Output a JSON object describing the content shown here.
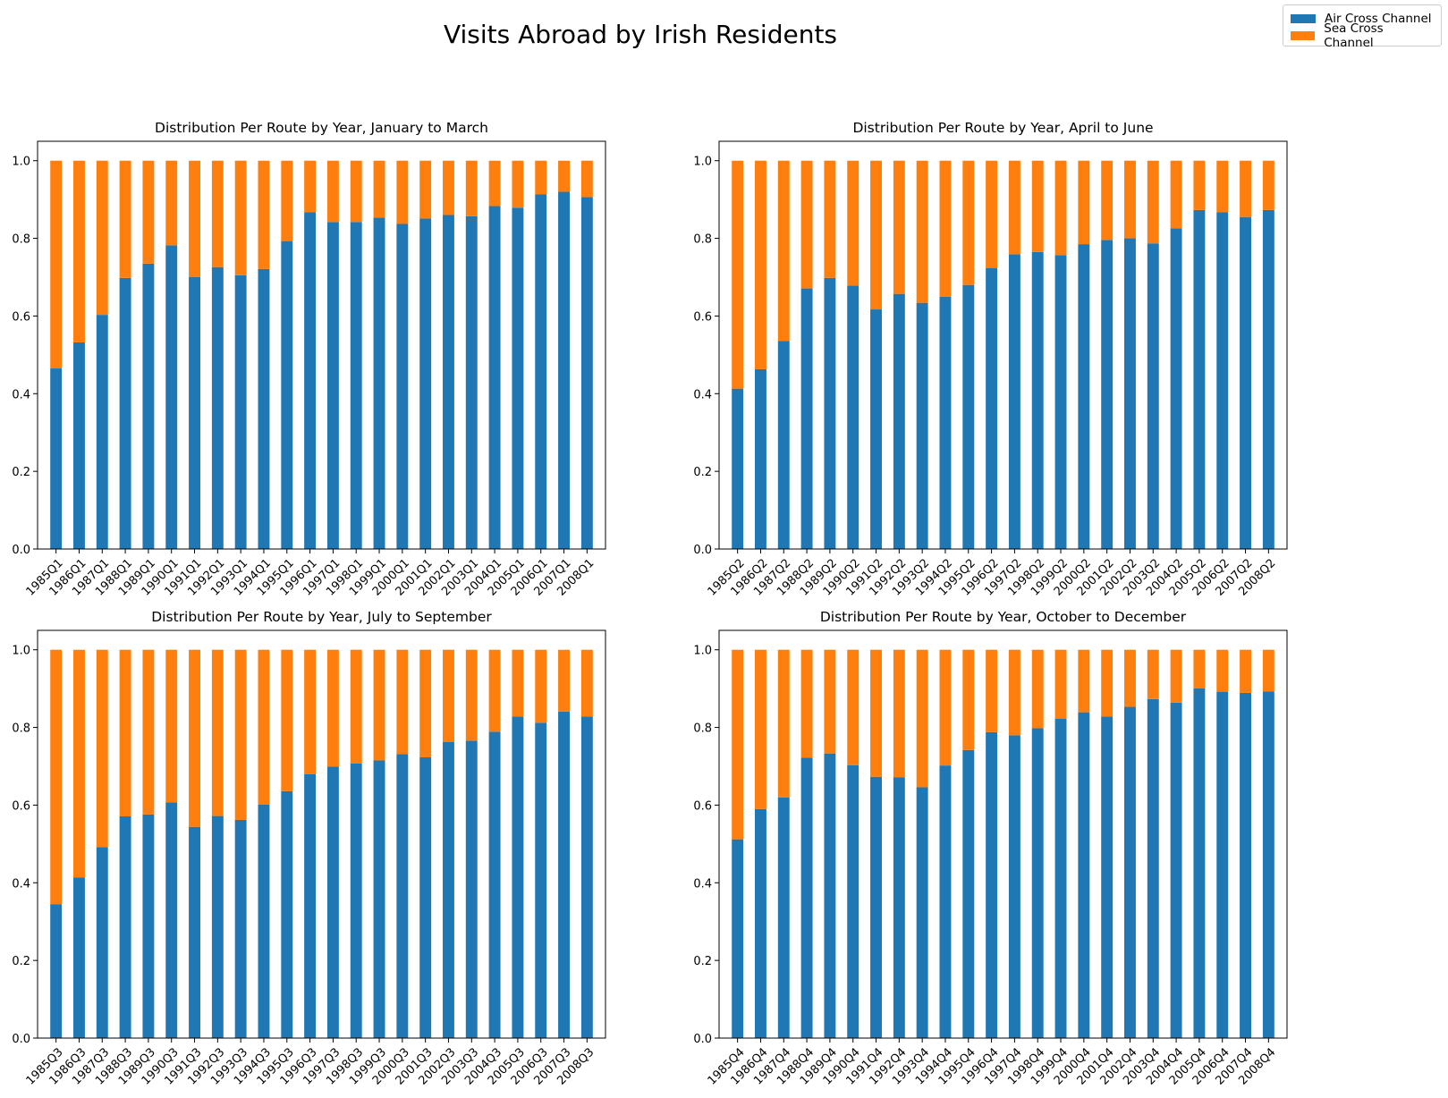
{
  "title": "Visits Abroad by Irish Residents",
  "legend": {
    "items": [
      {
        "label": "Air Cross Channel",
        "color": "#1f77b4"
      },
      {
        "label": "Sea Cross Channel",
        "color": "#ff7f0e"
      }
    ]
  },
  "chart_data": [
    {
      "type": "bar",
      "stacked": true,
      "title": "Distribution Per Route by Year, January to March",
      "categories": [
        "1985Q1",
        "1986Q1",
        "1987Q1",
        "1988Q1",
        "1989Q1",
        "1990Q1",
        "1991Q1",
        "1992Q1",
        "1993Q1",
        "1994Q1",
        "1995Q1",
        "1996Q1",
        "1997Q1",
        "1998Q1",
        "1999Q1",
        "2000Q1",
        "2001Q1",
        "2002Q1",
        "2003Q1",
        "2004Q1",
        "2005Q1",
        "2006Q1",
        "2007Q1",
        "2008Q1"
      ],
      "series": [
        {
          "name": "Air Cross Channel",
          "values": [
            0.465,
            0.532,
            0.603,
            0.698,
            0.735,
            0.782,
            0.7,
            0.726,
            0.705,
            0.721,
            0.793,
            0.867,
            0.842,
            0.842,
            0.853,
            0.837,
            0.851,
            0.86,
            0.857,
            0.883,
            0.879,
            0.913,
            0.92,
            0.906
          ]
        },
        {
          "name": "Sea Cross Channel",
          "values": [
            0.535,
            0.468,
            0.397,
            0.302,
            0.265,
            0.218,
            0.3,
            0.274,
            0.295,
            0.279,
            0.207,
            0.133,
            0.158,
            0.158,
            0.147,
            0.163,
            0.149,
            0.14,
            0.143,
            0.117,
            0.121,
            0.087,
            0.08,
            0.094
          ]
        }
      ],
      "ylim": [
        0,
        1.05
      ],
      "yticks": [
        "0.0",
        "0.2",
        "0.4",
        "0.6",
        "0.8",
        "1.0"
      ]
    },
    {
      "type": "bar",
      "stacked": true,
      "title": "Distribution Per Route by Year, April to June",
      "categories": [
        "1985Q2",
        "1986Q2",
        "1987Q2",
        "1988Q2",
        "1989Q2",
        "1990Q2",
        "1991Q2",
        "1992Q2",
        "1993Q2",
        "1994Q2",
        "1995Q2",
        "1996Q2",
        "1997Q2",
        "1998Q2",
        "1999Q2",
        "2000Q2",
        "2001Q2",
        "2002Q2",
        "2003Q2",
        "2004Q2",
        "2005Q2",
        "2006Q2",
        "2007Q2",
        "2008Q2"
      ],
      "series": [
        {
          "name": "Air Cross Channel",
          "values": [
            0.413,
            0.463,
            0.536,
            0.671,
            0.698,
            0.678,
            0.617,
            0.657,
            0.634,
            0.65,
            0.68,
            0.723,
            0.759,
            0.765,
            0.757,
            0.785,
            0.796,
            0.8,
            0.787,
            0.826,
            0.873,
            0.867,
            0.855,
            0.873
          ]
        },
        {
          "name": "Sea Cross Channel",
          "values": [
            0.587,
            0.537,
            0.464,
            0.329,
            0.302,
            0.322,
            0.383,
            0.343,
            0.366,
            0.35,
            0.32,
            0.277,
            0.241,
            0.235,
            0.243,
            0.215,
            0.204,
            0.2,
            0.213,
            0.174,
            0.127,
            0.133,
            0.145,
            0.127
          ]
        }
      ],
      "ylim": [
        0,
        1.05
      ],
      "yticks": [
        "0.0",
        "0.2",
        "0.4",
        "0.6",
        "0.8",
        "1.0"
      ]
    },
    {
      "type": "bar",
      "stacked": true,
      "title": "Distribution Per Route by Year, July to September",
      "categories": [
        "1985Q3",
        "1986Q3",
        "1987Q3",
        "1988Q3",
        "1989Q3",
        "1990Q3",
        "1991Q3",
        "1992Q3",
        "1993Q3",
        "1994Q3",
        "1995Q3",
        "1996Q3",
        "1997Q3",
        "1998Q3",
        "1999Q3",
        "2000Q3",
        "2001Q3",
        "2002Q3",
        "2003Q3",
        "2004Q3",
        "2005Q3",
        "2006Q3",
        "2007Q3",
        "2008Q3"
      ],
      "series": [
        {
          "name": "Air Cross Channel",
          "values": [
            0.345,
            0.414,
            0.492,
            0.571,
            0.576,
            0.607,
            0.544,
            0.572,
            0.562,
            0.601,
            0.636,
            0.68,
            0.699,
            0.707,
            0.715,
            0.731,
            0.723,
            0.763,
            0.766,
            0.789,
            0.828,
            0.812,
            0.841,
            0.828
          ]
        },
        {
          "name": "Sea Cross Channel",
          "values": [
            0.655,
            0.586,
            0.508,
            0.429,
            0.424,
            0.393,
            0.456,
            0.428,
            0.438,
            0.399,
            0.364,
            0.32,
            0.301,
            0.293,
            0.285,
            0.269,
            0.277,
            0.237,
            0.234,
            0.211,
            0.172,
            0.188,
            0.159,
            0.172
          ]
        }
      ],
      "ylim": [
        0,
        1.05
      ],
      "yticks": [
        "0.0",
        "0.2",
        "0.4",
        "0.6",
        "0.8",
        "1.0"
      ]
    },
    {
      "type": "bar",
      "stacked": true,
      "title": "Distribution Per Route by Year, October to December",
      "categories": [
        "1985Q4",
        "1986Q4",
        "1987Q4",
        "1988Q4",
        "1989Q4",
        "1990Q4",
        "1991Q4",
        "1992Q4",
        "1993Q4",
        "1994Q4",
        "1995Q4",
        "1996Q4",
        "1997Q4",
        "1998Q4",
        "1999Q4",
        "2000Q4",
        "2001Q4",
        "2002Q4",
        "2003Q4",
        "2004Q4",
        "2005Q4",
        "2006Q4",
        "2007Q4",
        "2008Q4"
      ],
      "series": [
        {
          "name": "Air Cross Channel",
          "values": [
            0.512,
            0.59,
            0.62,
            0.722,
            0.733,
            0.703,
            0.673,
            0.672,
            0.646,
            0.702,
            0.742,
            0.788,
            0.78,
            0.798,
            0.822,
            0.839,
            0.828,
            0.853,
            0.873,
            0.864,
            0.901,
            0.892,
            0.889,
            0.893
          ]
        },
        {
          "name": "Sea Cross Channel",
          "values": [
            0.488,
            0.41,
            0.38,
            0.278,
            0.267,
            0.297,
            0.327,
            0.328,
            0.354,
            0.298,
            0.258,
            0.212,
            0.22,
            0.202,
            0.178,
            0.161,
            0.172,
            0.147,
            0.127,
            0.136,
            0.099,
            0.108,
            0.111,
            0.107
          ]
        }
      ],
      "ylim": [
        0,
        1.05
      ],
      "yticks": [
        "0.0",
        "0.2",
        "0.4",
        "0.6",
        "0.8",
        "1.0"
      ]
    }
  ]
}
